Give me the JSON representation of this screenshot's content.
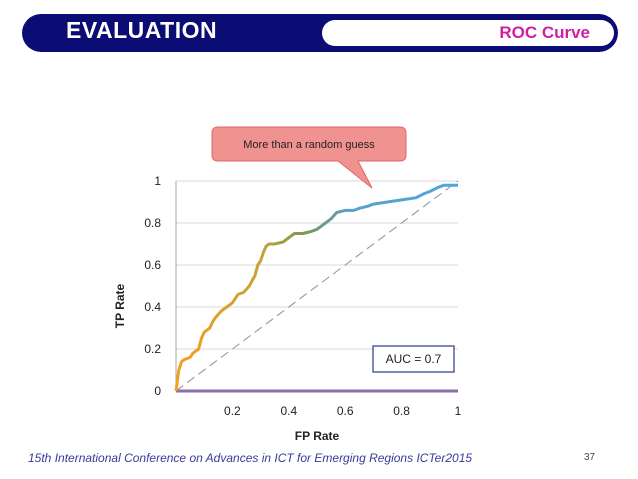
{
  "header": {
    "title": "EVALUATION",
    "subtitle": "ROC Curve"
  },
  "footer": {
    "text": "15th International Conference on Advances in ICT for Emerging Regions ICTer2015",
    "page_number": "37"
  },
  "colors": {
    "header_bar": "#0b0d75",
    "subtitle": "#d01fa2",
    "callout_fill": "#f09390",
    "callout_border": "#e06666",
    "curve_start": "#f4a020",
    "curve_mid": "#7a9950",
    "curve_end": "#4ea8de",
    "auc_border": "#2b3a8c",
    "x_axis_line": "#8a6fa8"
  },
  "chart_data": {
    "type": "line",
    "xlabel": "FP Rate",
    "ylabel": "TP Rate",
    "xlim": [
      0,
      1
    ],
    "ylim": [
      0,
      1
    ],
    "x_ticks": [
      "0.2",
      "0.4",
      "0.6",
      "0.8",
      "1"
    ],
    "y_ticks": [
      "0",
      "0.2",
      "0.4",
      "0.6",
      "0.8",
      "1"
    ],
    "grid": "horizontal",
    "series": [
      {
        "x": [
          0,
          0.005,
          0.01,
          0.02,
          0.03,
          0.05,
          0.06,
          0.08,
          0.09,
          0.1,
          0.12,
          0.13,
          0.14,
          0.16,
          0.18,
          0.2,
          0.22,
          0.24,
          0.26,
          0.28,
          0.29,
          0.3,
          0.31,
          0.32,
          0.33,
          0.35,
          0.38,
          0.4,
          0.42,
          0.45,
          0.48,
          0.5,
          0.53,
          0.55,
          0.57,
          0.6,
          0.63,
          0.65,
          0.68,
          0.7,
          0.75,
          0.8,
          0.85,
          0.88,
          0.9,
          0.93,
          0.95,
          0.97,
          1.0
        ],
        "y": [
          0,
          0.05,
          0.1,
          0.14,
          0.15,
          0.16,
          0.18,
          0.2,
          0.25,
          0.28,
          0.3,
          0.33,
          0.35,
          0.38,
          0.4,
          0.42,
          0.46,
          0.47,
          0.5,
          0.55,
          0.6,
          0.62,
          0.66,
          0.69,
          0.7,
          0.7,
          0.71,
          0.73,
          0.75,
          0.75,
          0.76,
          0.77,
          0.8,
          0.82,
          0.85,
          0.86,
          0.86,
          0.87,
          0.88,
          0.89,
          0.9,
          0.91,
          0.92,
          0.94,
          0.95,
          0.97,
          0.98,
          0.98,
          0.98
        ]
      }
    ],
    "reference_line": {
      "x": [
        0,
        1
      ],
      "y": [
        0,
        1
      ]
    },
    "annotations": {
      "callout": "More than a random guess",
      "auc": "AUC = 0.7"
    }
  }
}
